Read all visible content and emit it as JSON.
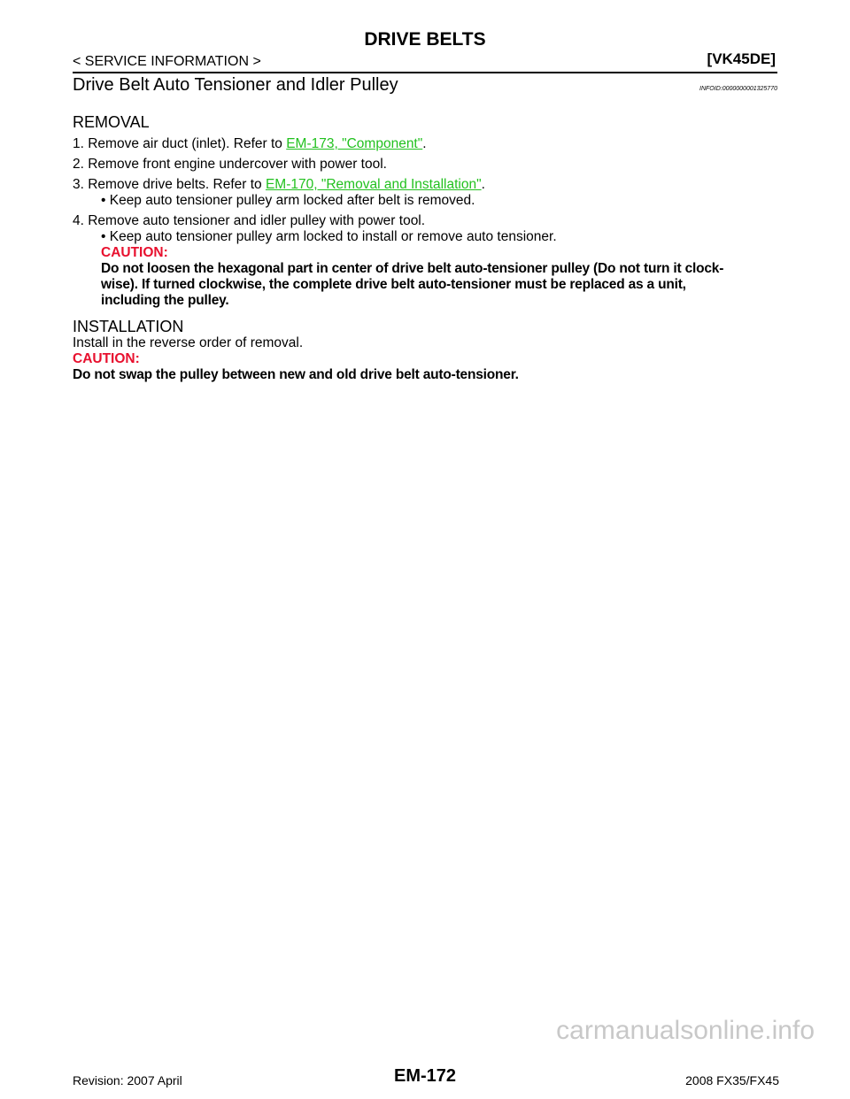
{
  "header": {
    "title": "DRIVE BELTS",
    "section": "< SERVICE INFORMATION >",
    "model": "[VK45DE]"
  },
  "heading": {
    "title": "Drive Belt Auto Tensioner and Idler Pulley",
    "infoid": "INFOID:0000000001325770"
  },
  "removal": {
    "title": "REMOVAL",
    "step1": {
      "text": "1.  Remove air duct (inlet). Refer to ",
      "link": "EM-173, \"Component\"",
      "end": "."
    },
    "step2": "2.  Remove front engine undercover with power tool.",
    "step3": {
      "text": "3.  Remove drive belts. Refer to ",
      "link": "EM-170, \"Removal and Installation\"",
      "end": "."
    },
    "step3_bullet": "•  Keep auto tensioner pulley arm locked after belt is removed.",
    "step4": "4.  Remove auto tensioner and idler pulley with power tool.",
    "step4_bullet": "•  Keep auto tensioner pulley arm locked to install or remove auto tensioner.",
    "caution_label": "CAUTION:",
    "caution_lines": [
      "Do not loosen the hexagonal part in center of drive belt auto-tensioner pulley (Do not turn it clock-",
      "wise). If turned clockwise, the complete drive belt auto-tensioner must be replaced as a unit,",
      "including the pulley."
    ]
  },
  "installation": {
    "title": "INSTALLATION",
    "text": "Install in the reverse order of removal.",
    "caution_label": "CAUTION:",
    "caution_text": "Do not swap the pulley between new and old drive belt auto-tensioner."
  },
  "footer": {
    "revision": "Revision: 2007 April",
    "page": "EM-172",
    "model": "2008 FX35/FX45",
    "watermark": "carmanualsonline.info"
  },
  "colors": {
    "link": "#22c11f",
    "caution": "#e8102e"
  }
}
